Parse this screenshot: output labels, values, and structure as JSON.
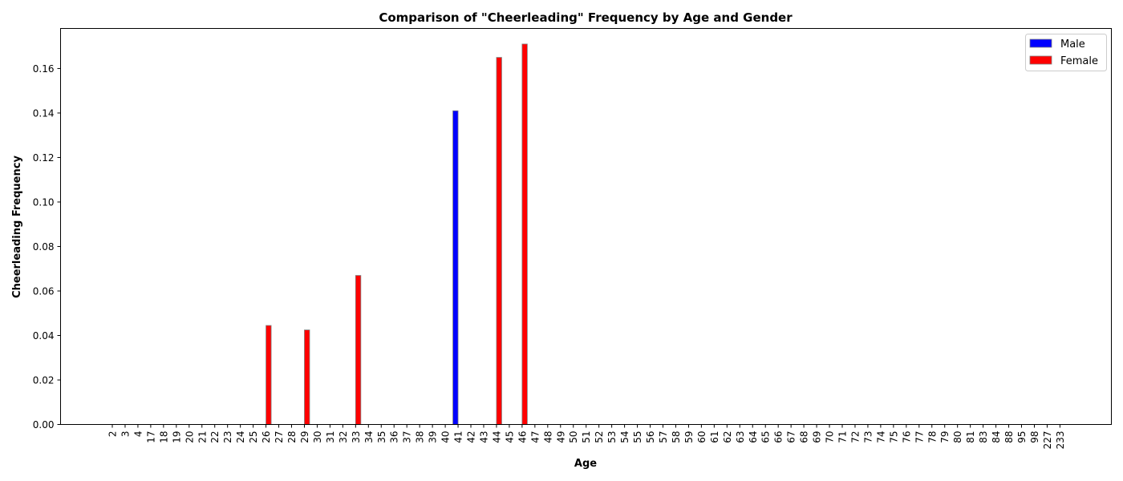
{
  "chart_data": {
    "type": "bar",
    "title": "Comparison of \"Cheerleading\" Frequency by Age and Gender",
    "xlabel": "Age",
    "ylabel": "Cheerleading Frequency",
    "ylim": [
      0,
      0.178
    ],
    "yticks": [
      "0.00",
      "0.02",
      "0.04",
      "0.06",
      "0.08",
      "0.10",
      "0.12",
      "0.14",
      "0.16"
    ],
    "grid": false,
    "legend_position": "top-right",
    "categories": [
      "2",
      "3",
      "4",
      "17",
      "18",
      "19",
      "20",
      "21",
      "22",
      "23",
      "24",
      "25",
      "26",
      "27",
      "28",
      "29",
      "30",
      "31",
      "32",
      "33",
      "34",
      "35",
      "36",
      "37",
      "38",
      "39",
      "40",
      "41",
      "42",
      "43",
      "44",
      "45",
      "46",
      "47",
      "48",
      "49",
      "50",
      "51",
      "52",
      "53",
      "54",
      "55",
      "56",
      "57",
      "58",
      "59",
      "60",
      "61",
      "62",
      "63",
      "64",
      "65",
      "66",
      "67",
      "68",
      "69",
      "70",
      "71",
      "72",
      "73",
      "74",
      "75",
      "76",
      "77",
      "78",
      "79",
      "80",
      "81",
      "83",
      "84",
      "88",
      "95",
      "98",
      "227",
      "233"
    ],
    "series": [
      {
        "name": "Male",
        "color": "#0000ff",
        "values": [
          0,
          0,
          0,
          0,
          0,
          0,
          0,
          0,
          0,
          0,
          0,
          0,
          0,
          0,
          0,
          0,
          0,
          0,
          0,
          0,
          0,
          0,
          0,
          0,
          0,
          0,
          0,
          0.141,
          0,
          0,
          0,
          0,
          0,
          0,
          0,
          0,
          0,
          0,
          0,
          0,
          0,
          0,
          0,
          0,
          0,
          0,
          0,
          0,
          0,
          0,
          0,
          0,
          0,
          0,
          0,
          0,
          0,
          0,
          0,
          0,
          0,
          0,
          0,
          0,
          0,
          0,
          0,
          0,
          0,
          0,
          0,
          0,
          0,
          0,
          0
        ]
      },
      {
        "name": "Female",
        "color": "#ff0000",
        "values": [
          0,
          0,
          0,
          0,
          0,
          0,
          0,
          0,
          0,
          0,
          0,
          0,
          0.0445,
          0,
          0,
          0.0425,
          0,
          0,
          0,
          0.067,
          0,
          0,
          0,
          0,
          0,
          0,
          0,
          0,
          0,
          0,
          0.165,
          0,
          0.171,
          0,
          0,
          0,
          0,
          0,
          0,
          0,
          0,
          0,
          0,
          0,
          0,
          0,
          0,
          0,
          0,
          0,
          0,
          0,
          0,
          0,
          0,
          0,
          0,
          0,
          0,
          0,
          0,
          0,
          0,
          0,
          0,
          0,
          0,
          0,
          0,
          0,
          0,
          0,
          0,
          0,
          0
        ]
      }
    ]
  }
}
